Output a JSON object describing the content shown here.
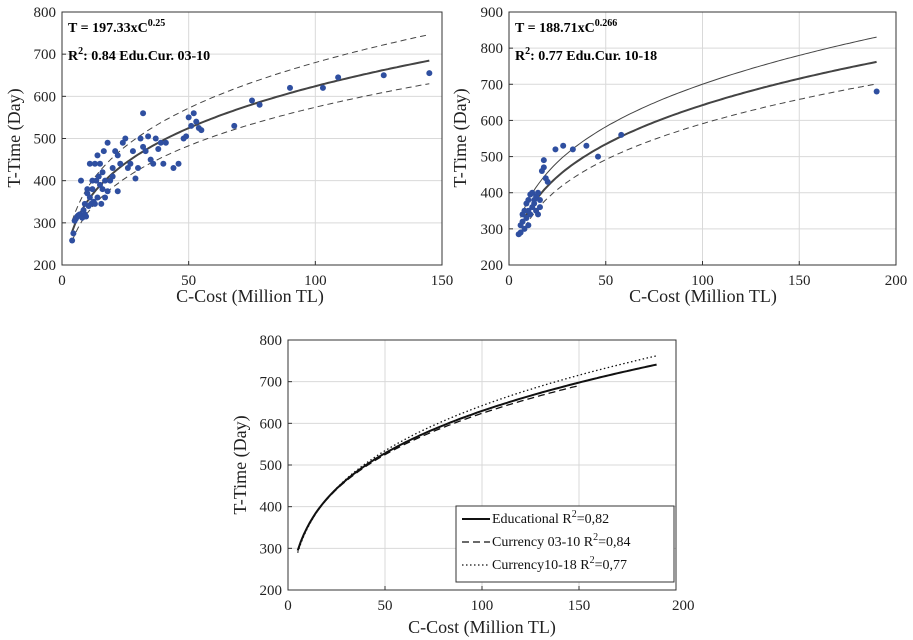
{
  "chart_data": [
    {
      "type": "scatter",
      "xlabel": "C-Cost (Million TL)",
      "ylabel": "T-Time (Day)",
      "xlim": [
        0,
        150
      ],
      "ylim": [
        200,
        800
      ],
      "xticks": [
        0,
        50,
        100,
        150
      ],
      "yticks": [
        200,
        300,
        400,
        500,
        600,
        700,
        800
      ],
      "grid": true,
      "annotation": {
        "line1_pre": "T = 197.33xC",
        "line1_sup": "0.25",
        "line2_pre": "R",
        "line2_sup": "2",
        "line2_post": ": 0.84 Edu.Cur. 03-10"
      },
      "fit": {
        "a": 197.33,
        "b": 0.25,
        "x_from": 4,
        "x_to": 145
      },
      "band": {
        "upper_factor": 1.09,
        "lower_factor": 0.92
      },
      "points": [
        [
          4,
          258
        ],
        [
          4.5,
          275
        ],
        [
          5,
          305
        ],
        [
          5.5,
          310
        ],
        [
          6,
          315
        ],
        [
          6.5,
          318
        ],
        [
          7,
          320
        ],
        [
          7.5,
          400
        ],
        [
          8,
          312
        ],
        [
          8.5,
          330
        ],
        [
          9,
          320
        ],
        [
          9,
          345
        ],
        [
          9.5,
          315
        ],
        [
          10,
          370
        ],
        [
          10,
          380
        ],
        [
          10.5,
          340
        ],
        [
          11,
          360
        ],
        [
          11,
          440
        ],
        [
          11.5,
          345
        ],
        [
          12,
          380
        ],
        [
          12,
          400
        ],
        [
          12.5,
          350
        ],
        [
          13,
          440
        ],
        [
          13,
          345
        ],
        [
          13.5,
          400
        ],
        [
          14,
          360
        ],
        [
          14,
          460
        ],
        [
          14.5,
          410
        ],
        [
          15,
          390
        ],
        [
          15,
          440
        ],
        [
          15.5,
          345
        ],
        [
          16,
          380
        ],
        [
          16,
          420
        ],
        [
          16.5,
          470
        ],
        [
          17,
          400
        ],
        [
          17,
          360
        ],
        [
          18,
          375
        ],
        [
          18,
          490
        ],
        [
          19,
          400
        ],
        [
          20,
          410
        ],
        [
          20,
          430
        ],
        [
          21,
          470
        ],
        [
          22,
          375
        ],
        [
          22,
          460
        ],
        [
          23,
          440
        ],
        [
          24,
          490
        ],
        [
          25,
          500
        ],
        [
          26,
          430
        ],
        [
          27,
          440
        ],
        [
          28,
          470
        ],
        [
          29,
          405
        ],
        [
          30,
          430
        ],
        [
          31,
          500
        ],
        [
          32,
          480
        ],
        [
          32,
          560
        ],
        [
          33,
          470
        ],
        [
          34,
          505
        ],
        [
          35,
          450
        ],
        [
          36,
          440
        ],
        [
          37,
          500
        ],
        [
          38,
          475
        ],
        [
          39,
          490
        ],
        [
          40,
          440
        ],
        [
          41,
          490
        ],
        [
          44,
          430
        ],
        [
          46,
          440
        ],
        [
          48,
          500
        ],
        [
          49,
          505
        ],
        [
          50,
          550
        ],
        [
          51,
          530
        ],
        [
          52,
          560
        ],
        [
          53,
          540
        ],
        [
          54,
          525
        ],
        [
          55,
          520
        ],
        [
          68,
          530
        ],
        [
          75,
          590
        ],
        [
          78,
          580
        ],
        [
          90,
          620
        ],
        [
          103,
          620
        ],
        [
          109,
          645
        ],
        [
          127,
          650
        ],
        [
          145,
          655
        ]
      ]
    },
    {
      "type": "scatter",
      "xlabel": "C-Cost (Million TL)",
      "ylabel": "T-Time (Day)",
      "xlim": [
        0,
        200
      ],
      "ylim": [
        200,
        900
      ],
      "xticks": [
        0,
        50,
        100,
        150,
        200
      ],
      "yticks": [
        200,
        300,
        400,
        500,
        600,
        700,
        800,
        900
      ],
      "grid": true,
      "annotation": {
        "line1_pre": "T = 188.71xC",
        "line1_sup": "0.266",
        "line2_pre": "R",
        "line2_sup": "2",
        "line2_post": ": 0.77 Edu.Cur. 10-18"
      },
      "fit": {
        "a": 188.71,
        "b": 0.266,
        "x_from": 6,
        "x_to": 190
      },
      "band": {
        "upper_factor": 1.09,
        "lower_factor": 0.92
      },
      "points": [
        [
          5,
          285
        ],
        [
          6,
          290
        ],
        [
          6,
          310
        ],
        [
          7,
          320
        ],
        [
          7,
          340
        ],
        [
          8,
          300
        ],
        [
          8,
          350
        ],
        [
          9,
          330
        ],
        [
          9,
          370
        ],
        [
          10,
          380
        ],
        [
          10,
          350
        ],
        [
          10,
          310
        ],
        [
          11,
          395
        ],
        [
          11,
          340
        ],
        [
          12,
          360
        ],
        [
          12,
          400
        ],
        [
          13,
          370
        ],
        [
          13,
          380
        ],
        [
          14,
          390
        ],
        [
          14,
          350
        ],
        [
          15,
          400
        ],
        [
          15,
          340
        ],
        [
          16,
          380
        ],
        [
          16,
          360
        ],
        [
          17,
          460
        ],
        [
          18,
          470
        ],
        [
          18,
          490
        ],
        [
          19,
          440
        ],
        [
          20,
          430
        ],
        [
          24,
          520
        ],
        [
          28,
          530
        ],
        [
          33,
          520
        ],
        [
          40,
          530
        ],
        [
          46,
          500
        ],
        [
          58,
          560
        ],
        [
          190,
          680
        ]
      ]
    },
    {
      "type": "line",
      "xlabel": "C-Cost (Million TL)",
      "ylabel": "T-Time (Day)",
      "xlim": [
        0,
        200
      ],
      "ylim": [
        200,
        800
      ],
      "xticks": [
        0,
        50,
        100,
        150
      ],
      "xticklabel_last": "200",
      "yticks": [
        200,
        300,
        400,
        500,
        600,
        700,
        800
      ],
      "grid": true,
      "legend_position": "bottom-right",
      "series": [
        {
          "name_pre": "Educational R",
          "name_sup": "2",
          "name_post": "=0,82",
          "a": 195.94,
          "b": 0.2535,
          "x_from": 5,
          "x_to": 190,
          "style": "solid"
        },
        {
          "name_pre": "Currency 03-10 R",
          "name_sup": "2",
          "name_post": "=0,84",
          "a": 197.33,
          "b": 0.25,
          "x_from": 5,
          "x_to": 150,
          "style": "dashed"
        },
        {
          "name_pre": "Currency10-18 R",
          "name_sup": "2",
          "name_post": "=0,77",
          "a": 188.71,
          "b": 0.266,
          "x_from": 5,
          "x_to": 190,
          "style": "dotted"
        }
      ]
    }
  ]
}
